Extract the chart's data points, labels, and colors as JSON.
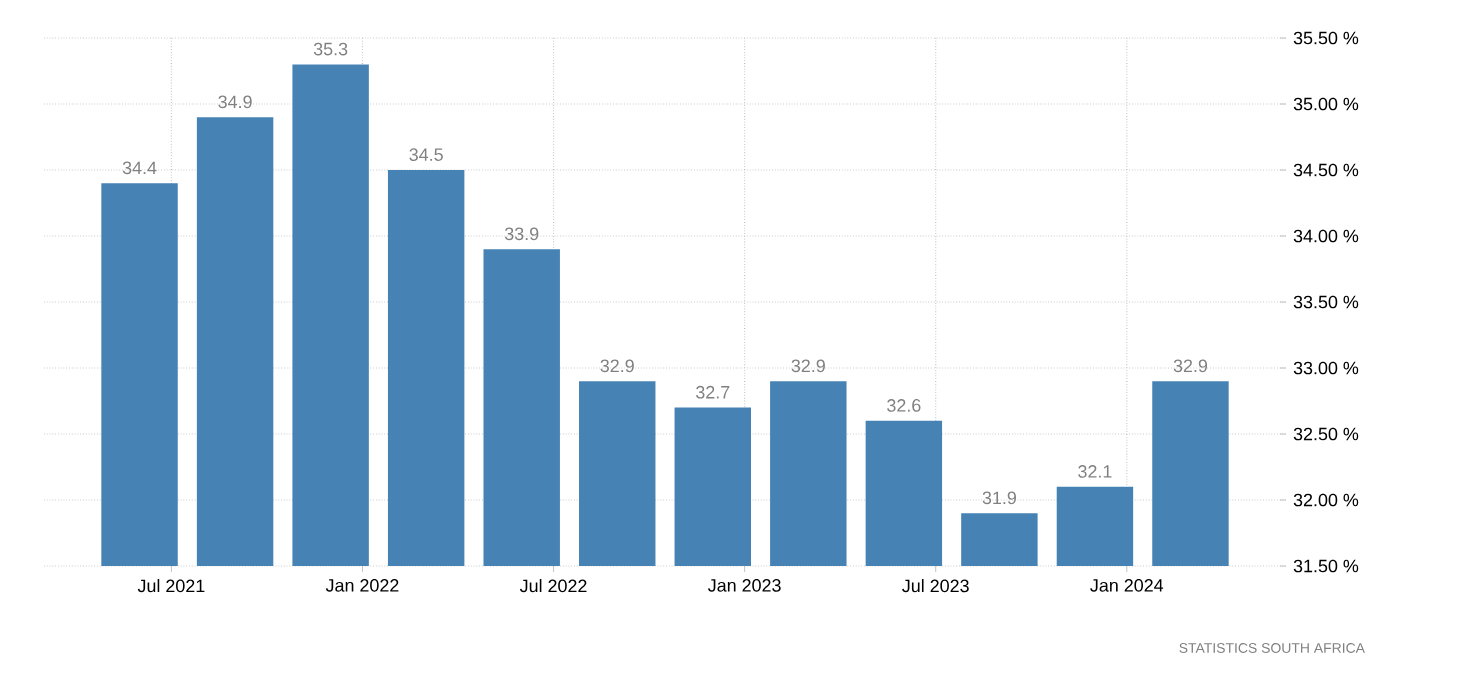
{
  "chart_data": {
    "type": "bar",
    "x": [
      "2021-06",
      "2021-09",
      "2021-12",
      "2022-03",
      "2022-06",
      "2022-09",
      "2022-12",
      "2023-03",
      "2023-06",
      "2023-09",
      "2023-12",
      "2024-03"
    ],
    "values": [
      34.4,
      34.9,
      35.3,
      34.5,
      33.9,
      32.9,
      32.7,
      32.9,
      32.6,
      31.9,
      32.1,
      32.9
    ],
    "color": "#4682b4",
    "data_labels": true,
    "xlim": [
      "2021-03",
      "2024-06"
    ],
    "xticks": [
      {
        "value": "2021-07",
        "label": "Jul 2021"
      },
      {
        "value": "2022-01",
        "label": "Jan 2022"
      },
      {
        "value": "2022-07",
        "label": "Jul 2022"
      },
      {
        "value": "2023-01",
        "label": "Jan 2023"
      },
      {
        "value": "2023-07",
        "label": "Jul 2023"
      },
      {
        "value": "2024-01",
        "label": "Jan 2024"
      }
    ],
    "ylim": [
      31.5,
      35.5
    ],
    "yticks": [
      {
        "value": 31.5,
        "label": "31.50 %"
      },
      {
        "value": 32.0,
        "label": "32.00 %"
      },
      {
        "value": 32.5,
        "label": "32.50 %"
      },
      {
        "value": 33.0,
        "label": "33.00 %"
      },
      {
        "value": 33.5,
        "label": "33.50 %"
      },
      {
        "value": 34.0,
        "label": "34.00 %"
      },
      {
        "value": 34.5,
        "label": "34.50 %"
      },
      {
        "value": 35.0,
        "label": "35.00 %"
      },
      {
        "value": 35.5,
        "label": "35.50 %"
      }
    ],
    "grid": true,
    "annotations": [
      "STATISTICS SOUTH AFRICA"
    ]
  }
}
